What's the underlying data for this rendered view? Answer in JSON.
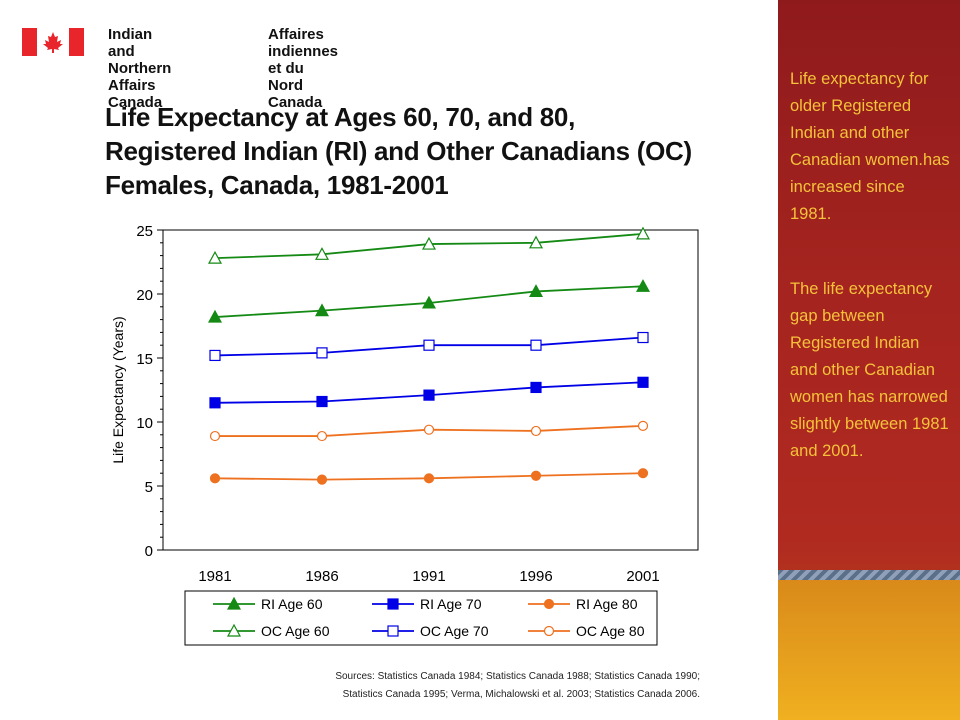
{
  "header": {
    "dept_en": "Indian and Northern\nAffairs Canada",
    "dept_fr": "Affaires indiennes\net du Nord Canada"
  },
  "slide": {
    "title": "Life Expectancy at Ages 60, 70, and 80,\nRegistered Indian (RI) and Other Canadians (OC)\nFemales, Canada, 1981-2001",
    "sources": "Sources:  Statistics Canada 1984; Statistics Canada 1988; Statistics Canada 1990;\nStatistics Canada 1995; Verma, Michalowski et al. 2003; Statistics Canada 2006."
  },
  "sidebar": {
    "text1": "Life expectancy for older Registered Indian and other Canadian women.has increased since 1981.",
    "text2": "The life expectancy gap between Registered Indian and other Canadian women has narrowed slightly between 1981 and 2001."
  },
  "colors": {
    "green": "#148a14",
    "blue": "#0000e6",
    "orange": "#ee7120",
    "sidebar_red": "#a5241f",
    "sidebar_text": "#f5c23a"
  },
  "chart_data": {
    "type": "line",
    "categories": [
      "1981",
      "1986",
      "1991",
      "1996",
      "2001"
    ],
    "ylabel": "Life Expectancy (Years)",
    "xlabel": "",
    "ylim": [
      0,
      25
    ],
    "yticks": [
      "0",
      "5",
      "10",
      "15",
      "20",
      "25"
    ],
    "grid": false,
    "legend_position": "bottom",
    "series": [
      {
        "name": "RI Age 60",
        "color": "#148a14",
        "marker": "triangle",
        "filled": true,
        "values": [
          18.2,
          18.7,
          19.3,
          20.2,
          20.6
        ]
      },
      {
        "name": "RI Age 70",
        "color": "#0000e6",
        "marker": "square",
        "filled": true,
        "values": [
          11.5,
          11.6,
          12.1,
          12.7,
          13.1
        ]
      },
      {
        "name": "RI Age 80",
        "color": "#ee7120",
        "marker": "circle",
        "filled": true,
        "values": [
          5.6,
          5.5,
          5.6,
          5.8,
          6.0
        ]
      },
      {
        "name": "OC Age 60",
        "color": "#148a14",
        "marker": "triangle",
        "filled": false,
        "values": [
          22.8,
          23.1,
          23.9,
          24.0,
          24.7
        ]
      },
      {
        "name": "OC Age 70",
        "color": "#0000e6",
        "marker": "square",
        "filled": false,
        "values": [
          15.2,
          15.4,
          16.0,
          16.0,
          16.6
        ]
      },
      {
        "name": "OC Age 80",
        "color": "#ee7120",
        "marker": "circle",
        "filled": false,
        "values": [
          8.9,
          8.9,
          9.4,
          9.3,
          9.7
        ]
      }
    ]
  }
}
